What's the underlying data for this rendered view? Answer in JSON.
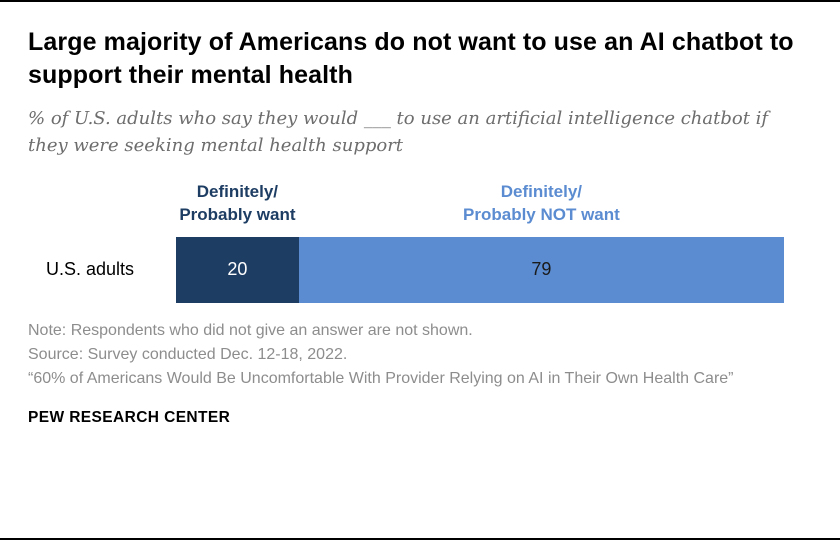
{
  "title": "Large majority of Americans do not want to use an AI chatbot to support their mental health",
  "subtitle": "% of U.S. adults who say they would ___ to use an artificial intelligence chatbot if they were seeking mental health support",
  "chart_data": {
    "type": "bar",
    "orientation": "horizontal-stacked",
    "categories": [
      "U.S. adults"
    ],
    "series": [
      {
        "name": "Definitely/\nProbably want",
        "values": [
          20
        ],
        "color": "#1e3d63",
        "value_label_color": "#ffffff"
      },
      {
        "name": "Definitely/\nProbably NOT want",
        "values": [
          79
        ],
        "color": "#5b8cd1",
        "value_label_color": "#1a1a1a"
      }
    ],
    "title": "Large majority of Americans do not want to use an AI chatbot to support their mental health",
    "xlabel": "",
    "ylabel": "",
    "xlim": [
      0,
      99
    ],
    "grid": false,
    "legend_position": "above-segments",
    "value_labels_shown": true
  },
  "notes": {
    "note": "Note: Respondents who did not give an answer are not shown.",
    "source": "Source: Survey conducted Dec. 12-18, 2022.",
    "citation": "“60% of Americans Would Be Uncomfortable With Provider Relying on AI in Their Own Health Care”"
  },
  "footer": "PEW RESEARCH CENTER"
}
